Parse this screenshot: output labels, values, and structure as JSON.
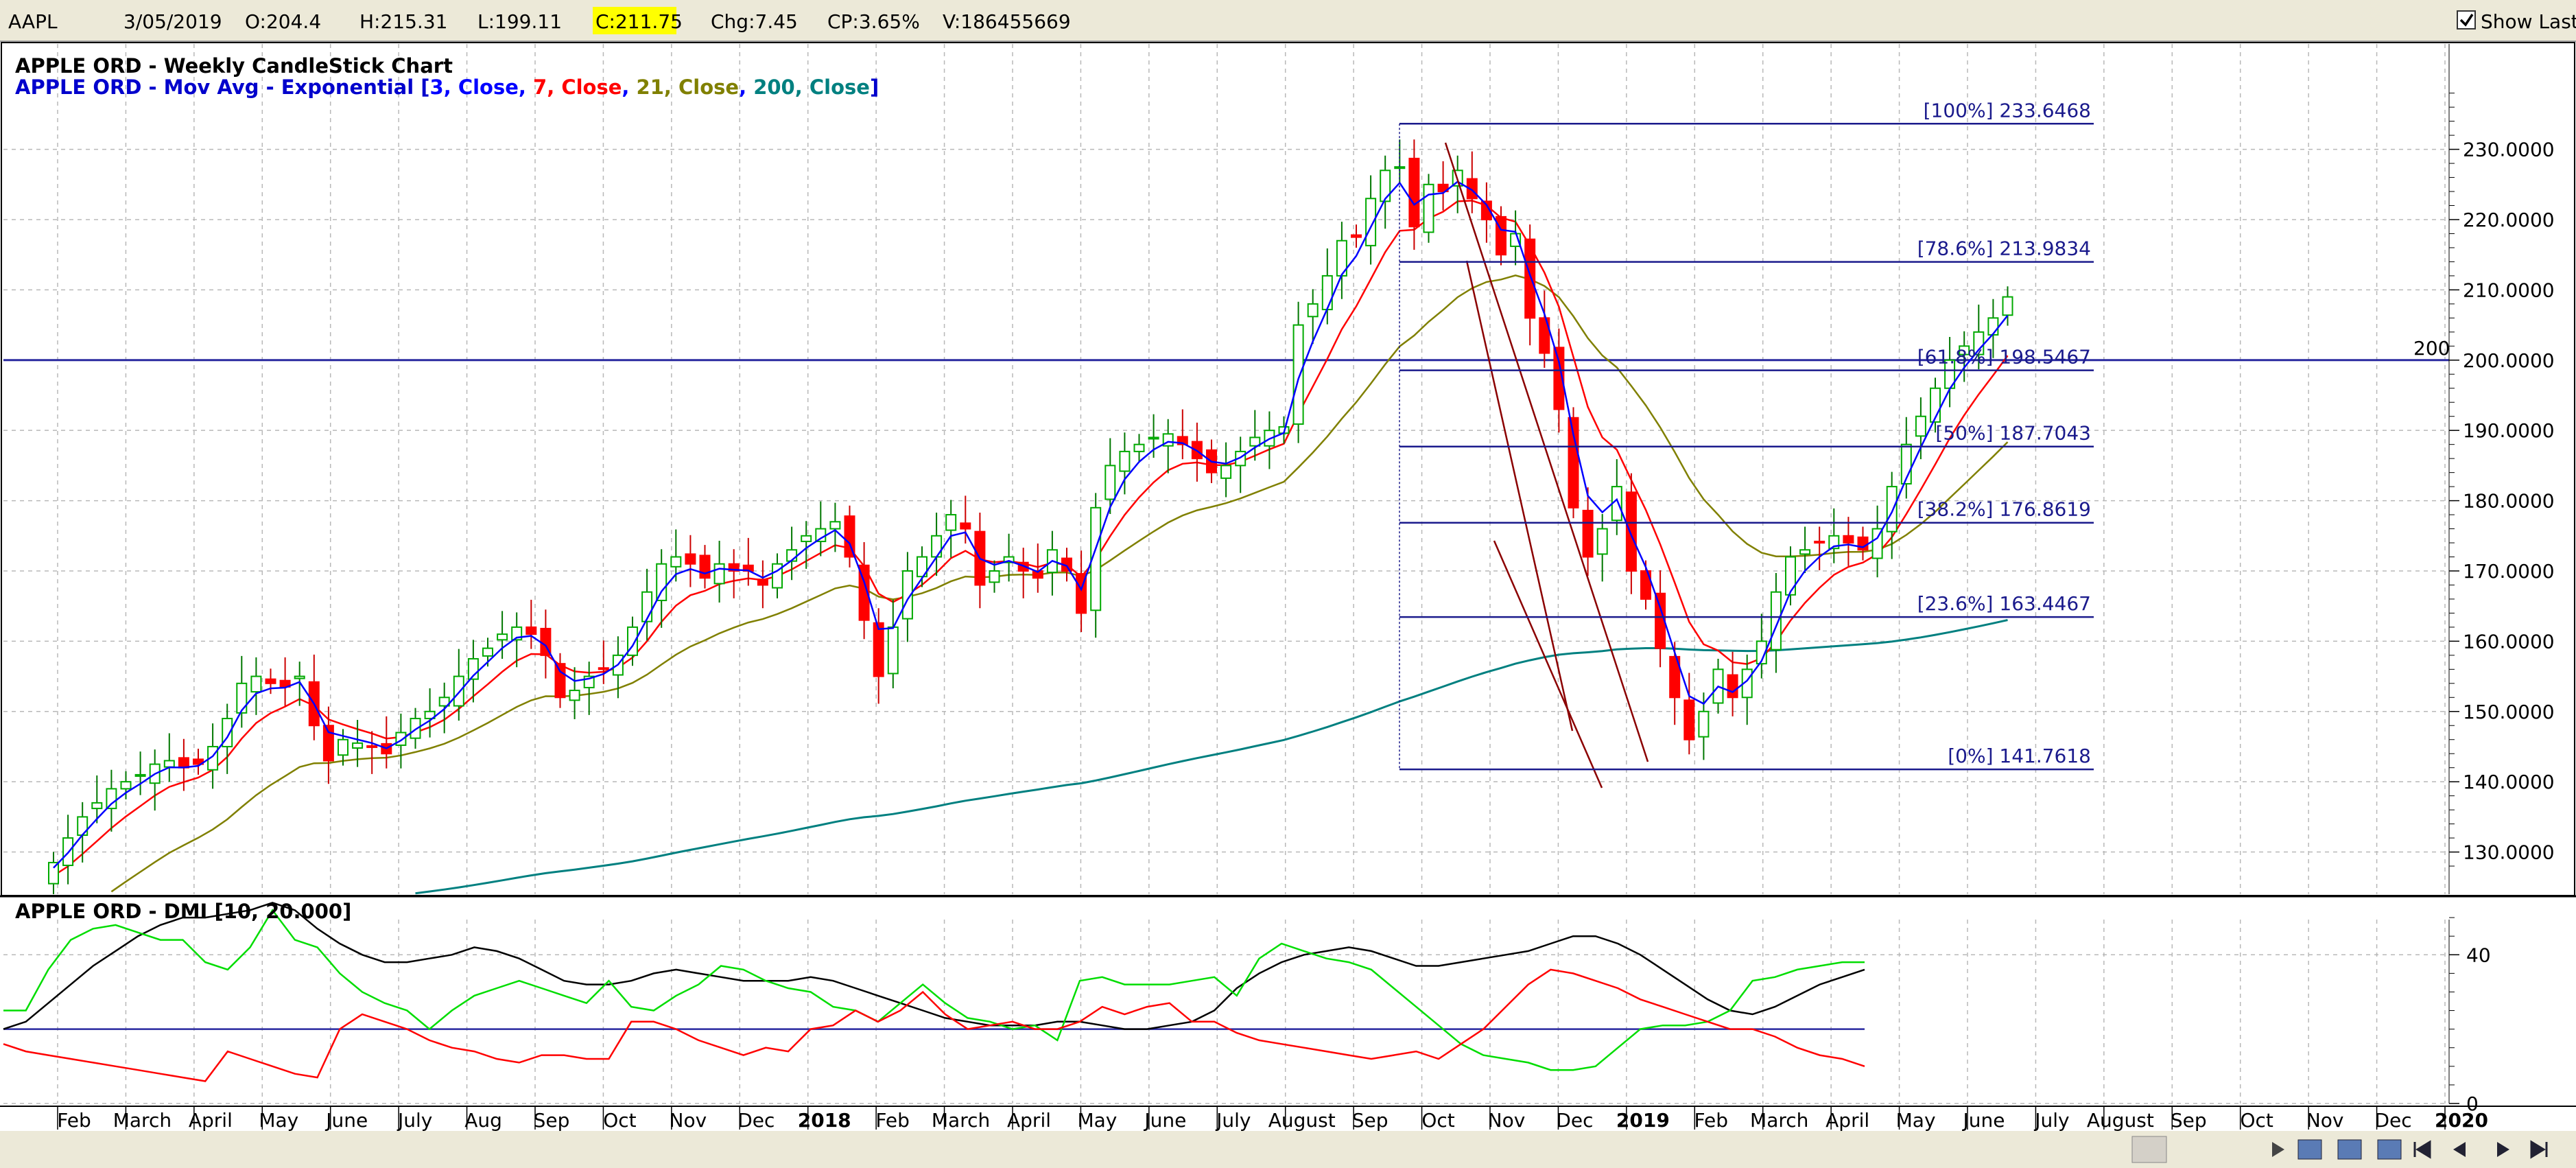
{
  "info_bar": {
    "symbol": "AAPL",
    "date": "3/05/2019",
    "open": "O:204.4",
    "high": "H:215.31",
    "low": "L:199.11",
    "close": "C:211.75",
    "change": "Chg:7.45",
    "change_pct": "CP:3.65%",
    "volume": "V:186455669",
    "show_last_label": "Show Last",
    "show_last_checked": true
  },
  "colors": {
    "up_candle": "#00aa00",
    "down_candle": "#ff0000",
    "ema3": "#0000ff",
    "ema7": "#ff0000",
    "ema21": "#808000",
    "ema200": "#008080",
    "fib": "#1a1a8c",
    "dmi_plus": "#00dd00",
    "dmi_minus": "#ff0000",
    "adx": "#000000"
  },
  "chart_data": [
    {
      "type": "candlestick",
      "title": "APPLE ORD - Weekly CandleStick Chart",
      "overlay_title": {
        "prefix": "APPLE ORD - Mov Avg - Exponential [",
        "parts": [
          {
            "text": "3, Close",
            "color": "#0000ff"
          },
          {
            "text": ", ",
            "color": "#0000ff"
          },
          {
            "text": "7, Close",
            "color": "#ff0000"
          },
          {
            "text": ", ",
            "color": "#0000ff"
          },
          {
            "text": "21, Close",
            "color": "#808000"
          },
          {
            "text": ", ",
            "color": "#0000ff"
          },
          {
            "text": "200, Close",
            "color": "#008080"
          }
        ],
        "suffix": "]"
      },
      "ylim": [
        124,
        245
      ],
      "y_ticks": [
        "130.0000",
        "140.0000",
        "150.0000",
        "160.0000",
        "170.0000",
        "180.0000",
        "190.0000",
        "200.0000",
        "210.0000",
        "220.0000",
        "230.0000"
      ],
      "y_tick_values": [
        130,
        140,
        150,
        160,
        170,
        180,
        190,
        200,
        210,
        220,
        230
      ],
      "horizontal_line": {
        "value": 200,
        "label": "200"
      },
      "fibonacci": [
        {
          "label": "[100%] 233.6468",
          "value": 233.6468
        },
        {
          "label": "[78.6%] 213.9834",
          "value": 213.9834
        },
        {
          "label": "[61.8%] 198.5467",
          "value": 198.5467
        },
        {
          "label": "[50%] 187.7043",
          "value": 187.7043
        },
        {
          "label": "[38.2%] 176.8619",
          "value": 176.8619
        },
        {
          "label": "[23.6%] 163.4467",
          "value": 163.4467
        },
        {
          "label": "[0%] 141.7618",
          "value": 141.7618
        }
      ],
      "candles_close": [
        128.5,
        132,
        135,
        137,
        139,
        140,
        141,
        142.5,
        143,
        142,
        142.5,
        145,
        149,
        154,
        155,
        154,
        153.5,
        155,
        148,
        143,
        146,
        145.5,
        145,
        144,
        147,
        149,
        150,
        152,
        155,
        157.5,
        159,
        161,
        162,
        161,
        158,
        152,
        153,
        155,
        156,
        158,
        162,
        167,
        171,
        172,
        171,
        169,
        171,
        170,
        170,
        168,
        171,
        173,
        175,
        176,
        177,
        172,
        163,
        155,
        162,
        170,
        172,
        175,
        178,
        176,
        168,
        170,
        172,
        170,
        169,
        173,
        170,
        164,
        179,
        185,
        187,
        188,
        189,
        189.5,
        188,
        186,
        184,
        185,
        187,
        189,
        190,
        190.5,
        205,
        208,
        212,
        217,
        217.5,
        223,
        227,
        227.5,
        219,
        225,
        224,
        227,
        223,
        220,
        215,
        218,
        206,
        201,
        193,
        179,
        172,
        176,
        182,
        170,
        166,
        159,
        152,
        146,
        150,
        156,
        152,
        156,
        160,
        167,
        172,
        173,
        174,
        175,
        174,
        173,
        176,
        182,
        188,
        192,
        196,
        200,
        202,
        204,
        206,
        209
      ],
      "x_axis": [
        {
          "label": "Feb",
          "bold": false
        },
        {
          "label": "March",
          "bold": false
        },
        {
          "label": "April",
          "bold": false
        },
        {
          "label": "May",
          "bold": false
        },
        {
          "label": "June",
          "bold": false
        },
        {
          "label": "July",
          "bold": false
        },
        {
          "label": "Aug",
          "bold": false
        },
        {
          "label": "Sep",
          "bold": false
        },
        {
          "label": "Oct",
          "bold": false
        },
        {
          "label": "Nov",
          "bold": false
        },
        {
          "label": "Dec",
          "bold": false
        },
        {
          "label": "2018",
          "bold": true
        },
        {
          "label": "Feb",
          "bold": false
        },
        {
          "label": "March",
          "bold": false
        },
        {
          "label": "April",
          "bold": false
        },
        {
          "label": "May",
          "bold": false
        },
        {
          "label": "June",
          "bold": false
        },
        {
          "label": "July",
          "bold": false
        },
        {
          "label": "August",
          "bold": false
        },
        {
          "label": "Sep",
          "bold": false
        },
        {
          "label": "Oct",
          "bold": false
        },
        {
          "label": "Nov",
          "bold": false
        },
        {
          "label": "Dec",
          "bold": false
        },
        {
          "label": "2019",
          "bold": true
        },
        {
          "label": "Feb",
          "bold": false
        },
        {
          "label": "March",
          "bold": false
        },
        {
          "label": "April",
          "bold": false
        },
        {
          "label": "May",
          "bold": false
        },
        {
          "label": "June",
          "bold": false
        },
        {
          "label": "July",
          "bold": false
        },
        {
          "label": "August",
          "bold": false
        },
        {
          "label": "Sep",
          "bold": false
        },
        {
          "label": "Oct",
          "bold": false
        },
        {
          "label": "Nov",
          "bold": false
        },
        {
          "label": "Dec",
          "bold": false
        },
        {
          "label": "2020",
          "bold": true
        }
      ],
      "grid": true
    },
    {
      "type": "line",
      "title": "APPLE ORD - DMI [10, 20.000]",
      "ylim": [
        0,
        55
      ],
      "y_ticks": [
        "0",
        "40"
      ],
      "y_tick_values": [
        0,
        40
      ],
      "reference_line": 20,
      "series": [
        {
          "key": "adx",
          "values": [
            20,
            22,
            27,
            32,
            37,
            41,
            45,
            48,
            50,
            50,
            51,
            52,
            54,
            52,
            47,
            43,
            40,
            38,
            38,
            39,
            40,
            42,
            41,
            39,
            36,
            33,
            32,
            32,
            33,
            35,
            36,
            35,
            34,
            33,
            33,
            33,
            34,
            33,
            31,
            29,
            27,
            25,
            23,
            22,
            21,
            21,
            21,
            22,
            22,
            21,
            20,
            20,
            21,
            22,
            25,
            31,
            35,
            38,
            40,
            41,
            42,
            41,
            39,
            37,
            37,
            38,
            39,
            40,
            41,
            43,
            45,
            45,
            43,
            40,
            36,
            32,
            28,
            25,
            24,
            26,
            29,
            32,
            34,
            36
          ]
        },
        {
          "key": "dmi_plus",
          "values": [
            25,
            25,
            36,
            44,
            47,
            48,
            46,
            44,
            44,
            38,
            36,
            42,
            52,
            44,
            42,
            35,
            30,
            27,
            25,
            20,
            25,
            29,
            31,
            33,
            31,
            29,
            27,
            33,
            26,
            25,
            29,
            32,
            37,
            36,
            33,
            31,
            30,
            26,
            25,
            22,
            27,
            32,
            27,
            23,
            22,
            20,
            21,
            17,
            33,
            34,
            32,
            32,
            32,
            33,
            34,
            29,
            39,
            43,
            41,
            39,
            38,
            36,
            31,
            26,
            21,
            16,
            13,
            12,
            11,
            9,
            9,
            10,
            15,
            20,
            21,
            21,
            22,
            25,
            33,
            34,
            36,
            37,
            38,
            38
          ]
        },
        {
          "key": "dmi_minus",
          "values": [
            16,
            14,
            13,
            12,
            11,
            10,
            9,
            8,
            7,
            6,
            14,
            12,
            10,
            8,
            7,
            20,
            24,
            22,
            20,
            17,
            15,
            14,
            12,
            11,
            13,
            13,
            12,
            12,
            22,
            22,
            20,
            17,
            15,
            13,
            15,
            14,
            20,
            21,
            25,
            22,
            25,
            30,
            24,
            20,
            21,
            22,
            20,
            20,
            22,
            26,
            24,
            26,
            27,
            22,
            22,
            19,
            17,
            16,
            15,
            14,
            13,
            12,
            13,
            14,
            12,
            16,
            20,
            26,
            32,
            36,
            35,
            33,
            31,
            28,
            26,
            24,
            22,
            20,
            20,
            18,
            15,
            13,
            12,
            10
          ]
        }
      ]
    }
  ],
  "scrollbar": {
    "nav_icons": [
      "zoom-in-icon",
      "zoom-out-icon",
      "fit-icon",
      "first-icon",
      "prev-icon",
      "next-icon",
      "last-icon"
    ]
  }
}
